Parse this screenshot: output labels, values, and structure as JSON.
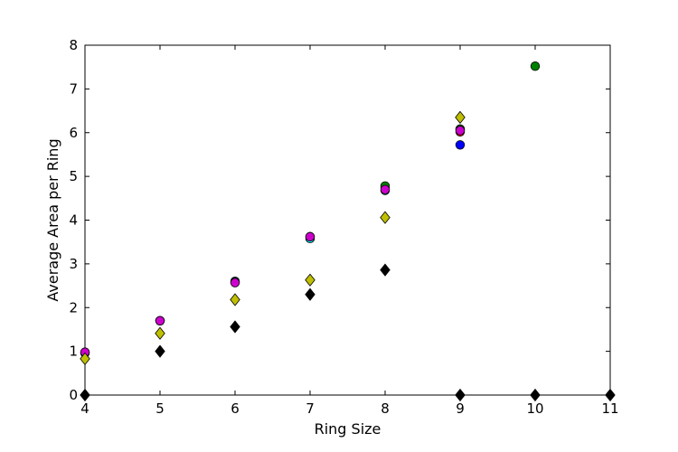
{
  "chart_data": {
    "type": "scatter",
    "title": "",
    "xlabel": "Ring Size",
    "ylabel": "Average Area per Ring",
    "xlim": [
      4,
      11
    ],
    "ylim": [
      0,
      8
    ],
    "xticks": [
      "4",
      "5",
      "6",
      "7",
      "8",
      "9",
      "10",
      "11"
    ],
    "yticks": [
      "0",
      "1",
      "2",
      "3",
      "4",
      "5",
      "6",
      "7",
      "8"
    ],
    "grid": false,
    "legend": "none",
    "series": [
      {
        "color": "#00ffff",
        "marker": "circle",
        "points": [
          [
            4,
            0.96
          ],
          [
            5,
            1.7
          ],
          [
            6,
            2.6
          ],
          [
            7,
            3.58
          ],
          [
            8,
            4.68
          ],
          [
            9,
            6.08
          ]
        ]
      },
      {
        "color": "#0000ff",
        "marker": "circle",
        "points": [
          [
            4,
            0.97
          ],
          [
            5,
            1.7
          ],
          [
            6,
            2.58
          ],
          [
            7,
            3.62
          ],
          [
            8,
            4.74
          ],
          [
            9,
            5.72
          ]
        ]
      },
      {
        "color": "#008000",
        "marker": "circle",
        "points": [
          [
            8,
            4.78
          ],
          [
            9,
            6.08
          ],
          [
            10,
            7.52
          ]
        ]
      },
      {
        "color": "#ff0000",
        "marker": "circle",
        "points": [
          [
            9,
            6.02
          ]
        ]
      },
      {
        "color": "#cc00cc",
        "marker": "circle",
        "points": [
          [
            4,
            0.98
          ],
          [
            5,
            1.7
          ],
          [
            6,
            2.57
          ],
          [
            7,
            3.62
          ],
          [
            8,
            4.7
          ],
          [
            9,
            6.05
          ]
        ]
      },
      {
        "color": "#bfbf00",
        "marker": "diamond",
        "points": [
          [
            4,
            0.83
          ],
          [
            5,
            1.41
          ],
          [
            6,
            2.18
          ],
          [
            7,
            2.63
          ],
          [
            8,
            4.06
          ],
          [
            9,
            6.35
          ]
        ]
      },
      {
        "color": "#000000",
        "marker": "diamond",
        "points": [
          [
            4,
            0.0
          ],
          [
            5,
            1.0
          ],
          [
            6,
            1.56
          ],
          [
            7,
            2.3
          ],
          [
            8,
            2.86
          ],
          [
            9,
            0.0
          ],
          [
            10,
            0.0
          ],
          [
            11,
            0.0
          ]
        ]
      }
    ]
  }
}
